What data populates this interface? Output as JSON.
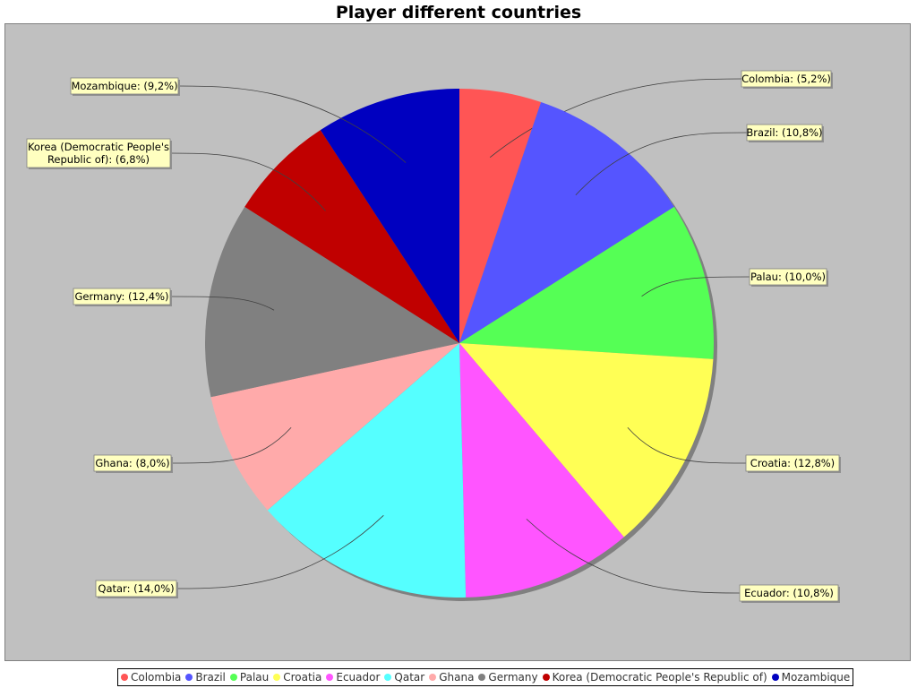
{
  "chart_data": {
    "type": "pie",
    "title": "Player different countries",
    "unit": "%",
    "slices": [
      {
        "name": "Colombia",
        "value": 5.2,
        "label": "Colombia: (5,2%)",
        "color": "#ff5555"
      },
      {
        "name": "Brazil",
        "value": 10.8,
        "label": "Brazil: (10,8%)",
        "color": "#5555ff"
      },
      {
        "name": "Palau",
        "value": 10.0,
        "label": "Palau: (10,0%)",
        "color": "#55ff55"
      },
      {
        "name": "Croatia",
        "value": 12.8,
        "label": "Croatia: (12,8%)",
        "color": "#ffff55"
      },
      {
        "name": "Ecuador",
        "value": 10.8,
        "label": "Ecuador: (10,8%)",
        "color": "#ff55ff"
      },
      {
        "name": "Qatar",
        "value": 14.0,
        "label": "Qatar: (14,0%)",
        "color": "#55ffff"
      },
      {
        "name": "Ghana",
        "value": 8.0,
        "label": "Ghana: (8,0%)",
        "color": "#ffaaaa"
      },
      {
        "name": "Germany",
        "value": 12.4,
        "label": "Germany: (12,4%)",
        "color": "#808080"
      },
      {
        "name": "Korea (Democratic People's Republic of)",
        "value": 6.8,
        "label": "Korea (Democratic People's Republic of): (6,8%)",
        "label_lines": [
          "Korea (Democratic People's",
          "Republic of): (6,8%)"
        ],
        "color": "#c00000"
      },
      {
        "name": "Mozambique",
        "value": 9.2,
        "label": "Mozambique: (9,2%)",
        "color": "#0000c0"
      }
    ],
    "legend_position": "bottom",
    "plot_background": "#c0c0c0",
    "label_background": "#ffffc0"
  }
}
